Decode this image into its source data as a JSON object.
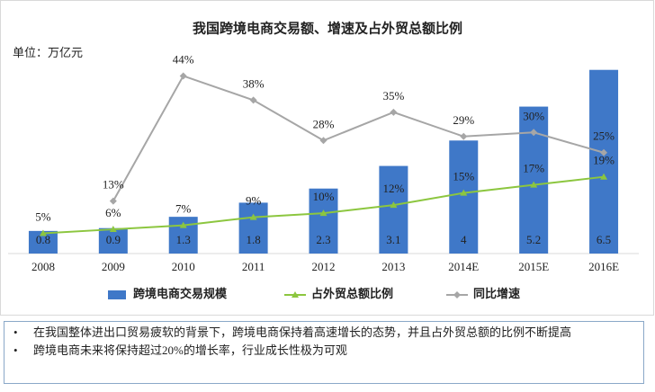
{
  "chart_data": {
    "type": "bar",
    "title": "我国跨境电商交易额、增速及占外贸总额比例",
    "unit": "单位：万亿元",
    "categories": [
      "2008",
      "2009",
      "2010",
      "2011",
      "2012",
      "2013",
      "2014E",
      "2015E",
      "2016E"
    ],
    "series": [
      {
        "name": "跨境电商交易规模",
        "type": "bar",
        "color": "#3f78c8",
        "values": [
          0.8,
          0.9,
          1.3,
          1.8,
          2.3,
          3.1,
          4,
          5.2,
          6.5
        ]
      },
      {
        "name": "占外贸总额比例",
        "type": "line",
        "marker": "triangle",
        "axis": "y2",
        "color": "#8cc63f",
        "values": [
          5,
          6,
          7,
          9,
          10,
          12,
          15,
          17,
          19
        ],
        "value_labels": [
          "5%",
          "6%",
          "7%",
          "9%",
          "10%",
          "12%",
          "15%",
          "17%",
          "19%"
        ]
      },
      {
        "name": "同比增速",
        "type": "line",
        "marker": "diamond",
        "axis": "y2",
        "color": "#a6a6a6",
        "values": [
          null,
          13,
          44,
          38,
          28,
          35,
          29,
          30,
          25
        ],
        "value_labels": [
          null,
          "13%",
          "44%",
          "38%",
          "28%",
          "35%",
          "29%",
          "30%",
          "25%"
        ]
      }
    ],
    "ylim": [
      0,
      7
    ],
    "y2lim": [
      0,
      49
    ],
    "legend": "bottom"
  },
  "notes": [
    "在我国整体进出口贸易疲软的背景下，跨境电商保持着高速增长的态势，并且占外贸总额的比例不断提高",
    "跨境电商未来将保持超过20%的增长率，行业成长性极为可观"
  ]
}
